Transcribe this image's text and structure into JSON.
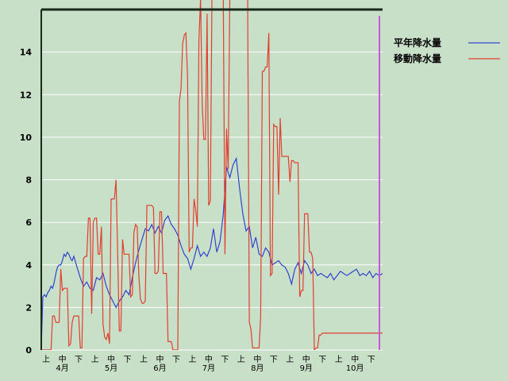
{
  "chart_data": {
    "type": "line",
    "ylim": [
      0,
      16
    ],
    "yticks": [
      0,
      2,
      4,
      6,
      8,
      10,
      12,
      14
    ],
    "x_range": [
      0,
      210
    ],
    "grid": "horizontal",
    "legend_placement": "top-right",
    "x_period_labels": [
      "上",
      "中",
      "下",
      "上",
      "中",
      "下",
      "上",
      "中",
      "下",
      "上",
      "中",
      "下",
      "上",
      "中",
      "下",
      "上",
      "中",
      "下",
      "上",
      "中",
      "下"
    ],
    "month_labels": [
      "4月",
      "5月",
      "6月",
      "7月",
      "8月",
      "9月",
      "10月"
    ],
    "series": [
      {
        "name": "平年降水量",
        "color": "#3344cc",
        "x": [
          0,
          1,
          2,
          3,
          4,
          5,
          6,
          7,
          8,
          9,
          10,
          11,
          12,
          13,
          14,
          15,
          16,
          17,
          18,
          19,
          20,
          22,
          24,
          26,
          28,
          30,
          32,
          34,
          36,
          38,
          40,
          42,
          44,
          46,
          48,
          50,
          52,
          54,
          56,
          58,
          60,
          62,
          64,
          66,
          68,
          70,
          72,
          74,
          76,
          78,
          80,
          82,
          84,
          86,
          88,
          90,
          92,
          94,
          96,
          98,
          100,
          102,
          104,
          106,
          108,
          110,
          112,
          114,
          116,
          118,
          120,
          122,
          124,
          126,
          128,
          130,
          132,
          134,
          136,
          138,
          140,
          142,
          144,
          146,
          148,
          150,
          152,
          154,
          156,
          158,
          160,
          162,
          164,
          166,
          168,
          170,
          172,
          174,
          176,
          178,
          180,
          182,
          184,
          186,
          188,
          190,
          192,
          194,
          196,
          198,
          200,
          202,
          204,
          206,
          208,
          210
        ],
        "values": [
          0.1,
          2.5,
          2.6,
          2.5,
          2.7,
          2.8,
          3.0,
          2.9,
          3.2,
          3.6,
          3.9,
          4.0,
          4.0,
          4.2,
          4.5,
          4.4,
          4.6,
          4.5,
          4.3,
          4.2,
          4.4,
          3.9,
          3.4,
          3.0,
          3.2,
          2.9,
          2.8,
          3.4,
          3.3,
          3.6,
          3.0,
          2.6,
          2.3,
          2.0,
          2.3,
          2.5,
          2.8,
          2.6,
          3.4,
          4.1,
          4.7,
          5.2,
          5.7,
          5.6,
          5.9,
          5.5,
          5.8,
          5.5,
          6.1,
          6.3,
          5.9,
          5.7,
          5.4,
          4.9,
          4.5,
          4.3,
          3.8,
          4.3,
          4.9,
          4.4,
          4.6,
          4.4,
          4.8,
          5.7,
          4.6,
          5.1,
          6.4,
          8.6,
          8.1,
          8.7,
          9.0,
          7.6,
          6.4,
          5.6,
          5.8,
          4.8,
          5.3,
          4.5,
          4.4,
          4.8,
          4.6,
          4.0,
          4.1,
          4.2,
          4.0,
          3.9,
          3.6,
          3.1,
          3.8,
          4.1,
          3.6,
          4.2,
          4.0,
          3.6,
          3.8,
          3.5,
          3.6,
          3.5,
          3.4,
          3.6,
          3.3,
          3.5,
          3.7,
          3.6,
          3.5,
          3.6,
          3.7,
          3.8,
          3.5,
          3.6,
          3.5,
          3.7,
          3.4,
          3.6,
          3.5,
          3.6
        ]
      },
      {
        "name": "移動降水量",
        "color": "#e04030",
        "x": [
          0,
          1,
          2,
          3,
          4,
          5,
          6,
          7,
          8,
          9,
          10,
          11,
          12,
          13,
          14,
          15,
          16,
          17,
          18,
          19,
          20,
          21,
          22,
          23,
          24,
          25,
          26,
          27,
          28,
          29,
          30,
          31,
          32,
          33,
          34,
          35,
          36,
          37,
          38,
          39,
          40,
          41,
          42,
          43,
          44,
          45,
          46,
          47,
          48,
          49,
          50,
          51,
          52,
          53,
          54,
          55,
          56,
          57,
          58,
          59,
          60,
          61,
          62,
          63,
          64,
          65,
          66,
          67,
          68,
          69,
          70,
          71,
          72,
          73,
          74,
          75,
          76,
          77,
          78,
          79,
          80,
          81,
          82,
          83,
          84,
          85,
          86,
          87,
          88,
          89,
          90,
          91,
          92,
          93,
          94,
          95,
          96,
          97,
          98,
          99,
          100,
          101,
          102,
          103,
          104,
          105,
          106,
          107,
          108,
          109,
          110,
          111,
          112,
          113,
          114,
          115,
          116,
          117,
          118,
          119,
          120,
          121,
          122,
          123,
          124,
          125,
          126,
          127,
          128,
          129,
          130,
          131,
          132,
          133,
          134,
          135,
          136,
          137,
          138,
          139,
          140,
          141,
          142,
          143,
          144,
          145,
          146,
          147,
          148,
          149,
          150,
          151,
          152,
          153,
          154,
          155,
          156,
          157,
          158,
          159,
          160,
          161,
          162,
          163,
          164,
          165,
          166,
          167,
          168,
          169,
          170,
          171,
          172,
          173,
          174,
          175,
          176,
          177,
          178,
          179,
          180,
          181,
          182,
          183,
          184,
          185,
          186,
          187,
          188,
          189,
          190,
          191,
          192,
          193,
          194,
          195,
          196,
          197,
          198,
          199,
          200,
          201,
          202,
          203,
          204,
          205,
          206,
          207,
          208,
          209,
          210
        ],
        "values": [
          0,
          0,
          0,
          0,
          0,
          0,
          0,
          1.6,
          1.6,
          1.3,
          1.3,
          1.3,
          3.8,
          2.8,
          2.9,
          2.9,
          2.9,
          0.2,
          0.3,
          1.3,
          1.6,
          1.6,
          1.6,
          1.6,
          0.1,
          0.1,
          4.3,
          4.4,
          4.4,
          6.2,
          6.2,
          1.7,
          6.0,
          6.2,
          6.2,
          4.5,
          4.5,
          5.8,
          1.2,
          0.6,
          0.5,
          0.8,
          0.3,
          7.1,
          7.1,
          7.1,
          8.0,
          4.6,
          0.9,
          0.9,
          5.2,
          4.5,
          4.5,
          4.5,
          4.5,
          2.5,
          2.6,
          5.5,
          5.9,
          5.8,
          3.5,
          2.4,
          2.2,
          2.2,
          2.3,
          6.8,
          6.8,
          6.8,
          6.8,
          6.7,
          3.6,
          3.6,
          3.7,
          6.5,
          6.5,
          3.6,
          3.6,
          3.6,
          0.4,
          0.4,
          0.4,
          0,
          0,
          0,
          0,
          11.7,
          12.3,
          14.4,
          14.8,
          14.9,
          12.8,
          4.6,
          4.8,
          4.8,
          7.1,
          6.6,
          5.8,
          14.6,
          16.5,
          11.6,
          9.9,
          9.9,
          15.8,
          6.8,
          7.0,
          16.5,
          16.5,
          16.5,
          16.5,
          16.5,
          16.5,
          16.5,
          16.5,
          4.5,
          10.4,
          8.5,
          16.5,
          16.5,
          16.5,
          16.5,
          16.5,
          16.5,
          16.5,
          16.5,
          16.5,
          16.5,
          16.5,
          16.5,
          1.3,
          1.0,
          0.1,
          0.1,
          0.1,
          0.1,
          0.1,
          1.6,
          13.1,
          13.1,
          13.3,
          13.3,
          14.9,
          3.5,
          3.6,
          10.6,
          10.5,
          10.5,
          7.3,
          10.9,
          9.1,
          9.1,
          9.1,
          9.1,
          9.1,
          7.9,
          8.9,
          8.9,
          8.8,
          8.8,
          8.8,
          2.5,
          2.8,
          2.8,
          6.4,
          6.4,
          6.4,
          4.6,
          4.6,
          4.3,
          0,
          0.1,
          0.1,
          0.7,
          0.7,
          0.8,
          0.8,
          0.8,
          0.8,
          0.8,
          0.8,
          0.8,
          0.8,
          0.8,
          0.8,
          0.8,
          0.8,
          0.8,
          0.8,
          0.8,
          0.8,
          0.8,
          0.8,
          0.8,
          0.8,
          0.8,
          0.8,
          0.8,
          0.8,
          0.8,
          0.8,
          0.8,
          0.8,
          0.8,
          0.8,
          0.8,
          0.8,
          0.8,
          0.8,
          0.8,
          0.8,
          0.8,
          0.8
        ]
      }
    ]
  }
}
